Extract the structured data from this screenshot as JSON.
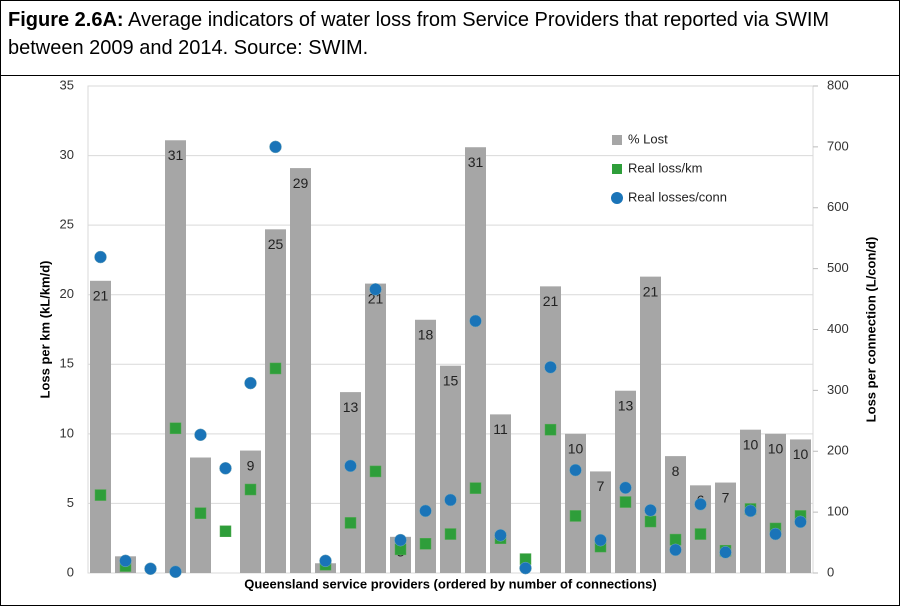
{
  "caption": {
    "label": "Figure 2.6A:",
    "text": "Average indicators of water loss from Service Providers that reported via SWIM between 2009 and 2014. Source: SWIM."
  },
  "chart_data": {
    "type": "bar",
    "xlabel": "Queensland service providers (ordered by number of connections)",
    "ylabel": "Loss per km (kL/km/d)",
    "y2label": "Loss per connection (L/con/d)",
    "categories": [
      null,
      null,
      null,
      null,
      null,
      null,
      null,
      null,
      null,
      null,
      null,
      null,
      null,
      null,
      null,
      null,
      null,
      null,
      null,
      null,
      null,
      null,
      null,
      null,
      null,
      null,
      null,
      null,
      null
    ],
    "ylim": [
      0,
      35
    ],
    "yticks": [
      0,
      5,
      10,
      15,
      20,
      25,
      30,
      35
    ],
    "y2lim": [
      0,
      800
    ],
    "y2ticks": [
      0,
      100,
      200,
      300,
      400,
      500,
      600,
      700,
      800
    ],
    "grid": true,
    "legend": "upper right",
    "series": [
      {
        "name": "% Lost",
        "color": "#a6a6a6",
        "marker": "bar",
        "values": [
          21,
          1.2,
          null,
          31.1,
          8.3,
          null,
          8.8,
          24.7,
          29.1,
          0.7,
          13,
          20.8,
          2.6,
          18.2,
          14.9,
          30.6,
          11.4,
          null,
          20.6,
          10,
          7.3,
          13.1,
          21.3,
          8.4,
          6.3,
          6.5,
          10.3,
          10,
          9.6
        ],
        "value_labels": [
          "21",
          "1",
          null,
          "31",
          null,
          null,
          "9",
          "25",
          "29",
          "1",
          "13",
          "21",
          "3",
          "18",
          "15",
          "31",
          "11",
          null,
          "21",
          "10",
          "7",
          "13",
          "21",
          "8",
          "6",
          "7",
          "10",
          "10",
          "10"
        ]
      },
      {
        "name": "Real loss/km",
        "color": "#2e9e3a",
        "marker": "square",
        "values": [
          5.6,
          0.5,
          null,
          10.4,
          4.3,
          3.0,
          6.0,
          14.7,
          null,
          0.6,
          3.6,
          7.3,
          1.7,
          2.1,
          2.8,
          6.1,
          2.5,
          1.0,
          10.3,
          4.1,
          1.9,
          5.1,
          3.7,
          2.4,
          2.8,
          1.6,
          4.6,
          3.2,
          4.1
        ]
      },
      {
        "name": "Real losses/conn",
        "color": "#1a74b8",
        "marker": "circle",
        "axis": "y2",
        "values": [
          519,
          20,
          7,
          2,
          227,
          172,
          312,
          700,
          null,
          20,
          176,
          466,
          54,
          102,
          120,
          414,
          62,
          8,
          338,
          169,
          54,
          140,
          103,
          38,
          113,
          34,
          102,
          64,
          84
        ]
      }
    ]
  }
}
